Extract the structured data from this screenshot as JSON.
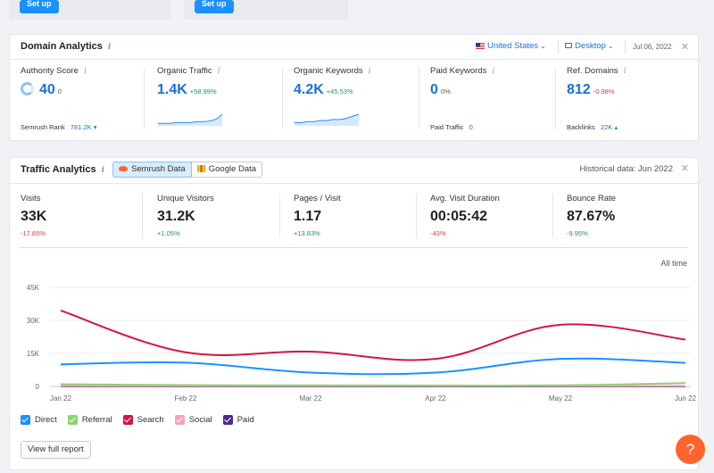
{
  "top_cards": [
    {
      "button": "Set up"
    },
    {
      "button": "Set up"
    }
  ],
  "domain": {
    "title": "Domain Analytics",
    "country": "United States",
    "device": "Desktop",
    "date": "Jul 06, 2022",
    "metrics": [
      {
        "label": "Authority Score",
        "value": "40",
        "suffix": "0",
        "foot_label": "Semrush Rank",
        "foot_value": "781.2K",
        "foot_arrow": "▾"
      },
      {
        "label": "Organic Traffic",
        "value": "1.4K",
        "delta": "+58.99%"
      },
      {
        "label": "Organic Keywords",
        "value": "4.2K",
        "delta": "+45.53%"
      },
      {
        "label": "Paid Keywords",
        "value": "0",
        "delta": "0%",
        "foot_label": "Paid Traffic",
        "foot_value": "0"
      },
      {
        "label": "Ref. Domains",
        "value": "812",
        "delta": "-0.98%",
        "foot_label": "Backlinks",
        "foot_value": "22K",
        "foot_arrow": "▴"
      }
    ],
    "sparklines": {
      "organic_traffic": [
        3,
        3,
        3,
        4,
        4,
        4,
        5,
        5,
        6,
        8,
        14
      ],
      "organic_keywords": [
        3,
        3,
        4,
        4,
        5,
        5,
        6,
        6,
        7,
        9,
        11
      ]
    }
  },
  "traffic": {
    "title": "Traffic Analytics",
    "toggle": {
      "semrush": "Semrush Data",
      "google": "Google Data"
    },
    "historical": "Historical data: Jun 2022",
    "metrics": [
      {
        "label": "Visits",
        "value": "33K",
        "delta": "-17.85%"
      },
      {
        "label": "Unique Visitors",
        "value": "31.2K",
        "delta": "+1.05%"
      },
      {
        "label": "Pages / Visit",
        "value": "1.17",
        "delta": "+13.83%"
      },
      {
        "label": "Avg. Visit Duration",
        "value": "00:05:42",
        "delta": "-43%"
      },
      {
        "label": "Bounce Rate",
        "value": "87.67%",
        "delta": "-9.95%"
      }
    ],
    "range_label": "All time",
    "legend": [
      {
        "name": "Direct",
        "color": "#1a91ff"
      },
      {
        "name": "Referral",
        "color": "#8bd46e"
      },
      {
        "name": "Search",
        "color": "#d1173f"
      },
      {
        "name": "Social",
        "color": "#f5a3b5"
      },
      {
        "name": "Paid",
        "color": "#4e2a8f"
      }
    ],
    "report_button": "View full report"
  },
  "help_label": "?",
  "chart_data": {
    "type": "line",
    "x": [
      "Jan 22",
      "Feb 22",
      "Mar 22",
      "Apr 22",
      "May 22",
      "Jun 22"
    ],
    "ylim": [
      0,
      45000
    ],
    "yticks": [
      "0",
      "15K",
      "30K",
      "45K"
    ],
    "ytick_values": [
      0,
      15000,
      30000,
      45000
    ],
    "grid": true,
    "series": [
      {
        "name": "Search",
        "color": "#d1173f",
        "values": [
          34500,
          15500,
          15800,
          12500,
          28000,
          21300
        ]
      },
      {
        "name": "Direct",
        "color": "#1a91ff",
        "values": [
          10000,
          10800,
          6300,
          6300,
          12500,
          10700
        ]
      },
      {
        "name": "Referral",
        "color": "#8bd46e",
        "values": [
          1000,
          600,
          500,
          400,
          500,
          1500
        ]
      },
      {
        "name": "Social",
        "color": "#f5a3b5",
        "values": [
          200,
          200,
          200,
          200,
          200,
          200
        ]
      },
      {
        "name": "Paid",
        "color": "#4e2a8f",
        "values": [
          0,
          0,
          0,
          0,
          0,
          0
        ]
      }
    ]
  }
}
